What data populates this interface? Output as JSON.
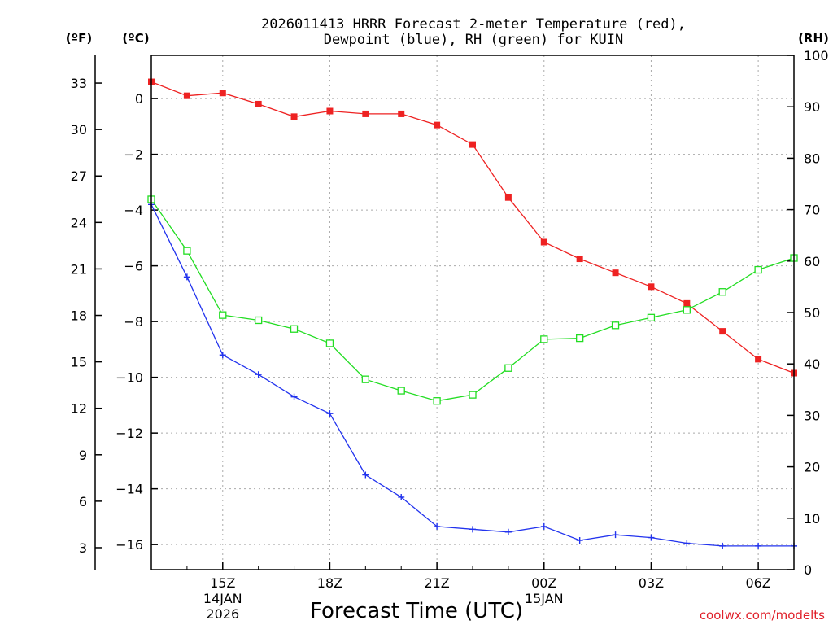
{
  "chart_data": {
    "type": "line",
    "title_line1": "2026011413 HRRR Forecast 2-meter Temperature (red),",
    "title_line2": "Dewpoint (blue), RH (green) for KUIN",
    "xlabel": "Forecast Time (UTC)",
    "credit": "coolwx.com/modelts",
    "axes": {
      "fahrenheit": {
        "label": "(ºF)",
        "ticks": [
          3,
          6,
          9,
          12,
          15,
          18,
          21,
          24,
          27,
          30,
          33
        ]
      },
      "celsius": {
        "label": "(ºC)",
        "ticks": [
          -16,
          -14,
          -12,
          -10,
          -8,
          -6,
          -4,
          -2,
          0
        ],
        "range": [
          -16.9,
          1.55
        ]
      },
      "rh": {
        "label": "(RH)",
        "ticks": [
          0,
          10,
          20,
          30,
          40,
          50,
          60,
          70,
          80,
          90,
          100
        ],
        "range": [
          0,
          100
        ]
      }
    },
    "x_range": [
      13,
      31
    ],
    "x_ticks": [
      {
        "hour": 15,
        "label": "15Z",
        "date": "14JAN",
        "year": "2026"
      },
      {
        "hour": 18,
        "label": "18Z"
      },
      {
        "hour": 21,
        "label": "21Z"
      },
      {
        "hour": 24,
        "label": "00Z",
        "date": "15JAN"
      },
      {
        "hour": 27,
        "label": "03Z"
      },
      {
        "hour": 30,
        "label": "06Z"
      }
    ],
    "x": [
      13,
      14,
      15,
      16,
      17,
      18,
      19,
      20,
      21,
      22,
      23,
      24,
      25,
      26,
      27,
      28,
      29,
      30,
      31
    ],
    "series": [
      {
        "name": "Temperature",
        "axis": "celsius",
        "color": "#ee2222",
        "marker": "filled-square",
        "values": [
          0.6,
          0.1,
          0.2,
          -0.2,
          -0.65,
          -0.45,
          -0.55,
          -0.55,
          -0.95,
          -1.65,
          -3.55,
          -5.15,
          -5.75,
          -6.25,
          -6.75,
          -7.35,
          -8.35,
          -9.35,
          -9.85
        ]
      },
      {
        "name": "Dewpoint",
        "axis": "celsius",
        "color": "#2233ee",
        "marker": "plus",
        "values": [
          -3.8,
          -6.4,
          -9.2,
          -9.9,
          -10.7,
          -11.3,
          -13.5,
          -14.3,
          -15.35,
          -15.45,
          -15.55,
          -15.35,
          -15.85,
          -15.65,
          -15.75,
          -15.95,
          -16.05,
          -16.05,
          -16.05
        ]
      },
      {
        "name": "RH",
        "axis": "rh",
        "color": "#22dd22",
        "marker": "open-square",
        "values": [
          72,
          62,
          49.5,
          48.5,
          46.8,
          44,
          37,
          34.8,
          32.8,
          34,
          39.2,
          44.8,
          45,
          47.5,
          49,
          50.5,
          54,
          58.3,
          60.6
        ]
      }
    ]
  }
}
